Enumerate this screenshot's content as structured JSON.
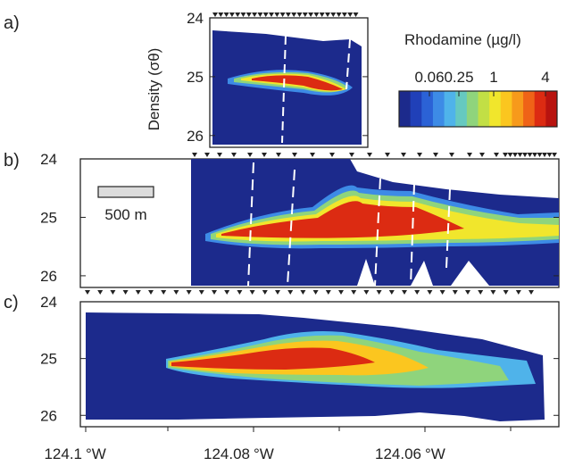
{
  "colorbar": {
    "title": "Rhodamine (µg/l)",
    "ticks": [
      "0.06",
      "0.25",
      "1",
      "4"
    ],
    "colors": [
      "#1c2a8c",
      "#2040b8",
      "#2b62d6",
      "#3d8be6",
      "#4fb3ea",
      "#66c9c0",
      "#8fd47c",
      "#c2df45",
      "#f1e62c",
      "#fbc61f",
      "#f79a1b",
      "#ef6317",
      "#dc2b12",
      "#b8130f"
    ]
  },
  "chart_data": [
    {
      "panel": "a)",
      "type": "heatmap",
      "ylabel": "Density (σθ)",
      "yticks": [
        "24",
        "25",
        "26"
      ],
      "ylim": [
        26.2,
        24
      ],
      "description_source": "rhodamine concentration vs density, zoomed section",
      "core": {
        "density": 25.0,
        "peak_ugl": 4
      }
    },
    {
      "panel": "b)",
      "type": "heatmap",
      "yticks": [
        "24",
        "25",
        "26"
      ],
      "ylim": [
        26.2,
        24
      ],
      "scale_bar": "500 m",
      "core": {
        "density_range": [
          24.9,
          25.4
        ],
        "peak_ugl": 4
      }
    },
    {
      "panel": "c)",
      "type": "heatmap",
      "yticks": [
        "24",
        "25",
        "26"
      ],
      "ylim": [
        26.2,
        24
      ],
      "xticks": [
        {
          "deg": "124.1",
          "unit": "°W"
        },
        {
          "deg": "124.08",
          "unit": "°W"
        },
        {
          "deg": "124.06",
          "unit": "°W"
        }
      ],
      "xlim": [
        -124.1,
        -124.045
      ],
      "core": {
        "density_range": [
          24.8,
          25.4
        ],
        "peak_ugl": 4
      }
    }
  ]
}
